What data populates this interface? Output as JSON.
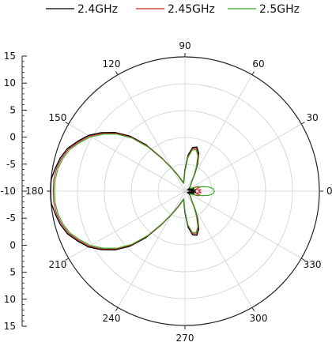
{
  "chart_data": {
    "type": "polar-line",
    "title": "",
    "legend": {
      "placement": "top",
      "entries": [
        {
          "name": "2.4GHz",
          "color": "#000000"
        },
        {
          "name": "2.45GHz",
          "color": "#cc2222"
        },
        {
          "name": "2.5GHz",
          "color": "#33aa22"
        }
      ]
    },
    "angle_ticks": [
      0,
      30,
      60,
      90,
      120,
      150,
      180,
      210,
      240,
      270,
      300,
      330
    ],
    "radial_axis": {
      "range": [
        -15,
        15
      ],
      "tick_labels": [
        "15",
        "10",
        "5",
        "0",
        "-5",
        "-10",
        "-5",
        "0",
        "5",
        "10",
        "15"
      ],
      "tick_values": [
        -15,
        -10,
        -5,
        0,
        5,
        10,
        15
      ],
      "grid_rings": 5
    },
    "grid": true,
    "series": [
      {
        "name": "2.4GHz",
        "points": [
          [
            0,
            0.05
          ],
          [
            5,
            0.08
          ],
          [
            10,
            0.03
          ],
          [
            15,
            0.07
          ],
          [
            20,
            0.05
          ],
          [
            25,
            0.02
          ],
          [
            30,
            0.03
          ],
          [
            40,
            0.05
          ],
          [
            50,
            0.07
          ],
          [
            55,
            0.09
          ],
          [
            60,
            0.14
          ],
          [
            65,
            0.22
          ],
          [
            70,
            0.3
          ],
          [
            75,
            0.34
          ],
          [
            80,
            0.33
          ],
          [
            85,
            0.27
          ],
          [
            90,
            0.16
          ],
          [
            95,
            0.09
          ],
          [
            100,
            0.06
          ],
          [
            110,
            0.1
          ],
          [
            115,
            0.14
          ],
          [
            120,
            0.2
          ],
          [
            125,
            0.3
          ],
          [
            130,
            0.45
          ],
          [
            135,
            0.58
          ],
          [
            140,
            0.68
          ],
          [
            145,
            0.76
          ],
          [
            150,
            0.83
          ],
          [
            155,
            0.88
          ],
          [
            160,
            0.93
          ],
          [
            165,
            0.96
          ],
          [
            170,
            0.98
          ],
          [
            175,
            1.0
          ],
          [
            180,
            1.0
          ],
          [
            185,
            1.0
          ],
          [
            190,
            0.98
          ],
          [
            195,
            0.96
          ],
          [
            200,
            0.93
          ],
          [
            205,
            0.88
          ],
          [
            210,
            0.83
          ],
          [
            215,
            0.76
          ],
          [
            220,
            0.68
          ],
          [
            225,
            0.58
          ],
          [
            230,
            0.45
          ],
          [
            235,
            0.3
          ],
          [
            240,
            0.2
          ],
          [
            245,
            0.14
          ],
          [
            250,
            0.1
          ],
          [
            260,
            0.06
          ],
          [
            265,
            0.09
          ],
          [
            270,
            0.16
          ],
          [
            275,
            0.27
          ],
          [
            280,
            0.33
          ],
          [
            285,
            0.34
          ],
          [
            290,
            0.3
          ],
          [
            295,
            0.22
          ],
          [
            300,
            0.14
          ],
          [
            305,
            0.09
          ],
          [
            310,
            0.07
          ],
          [
            320,
            0.05
          ],
          [
            330,
            0.03
          ],
          [
            335,
            0.02
          ],
          [
            340,
            0.05
          ],
          [
            345,
            0.07
          ],
          [
            350,
            0.03
          ],
          [
            355,
            0.08
          ],
          [
            360,
            0.05
          ]
        ]
      },
      {
        "name": "2.45GHz",
        "points": [
          [
            0,
            0.1
          ],
          [
            5,
            0.12
          ],
          [
            10,
            0.08
          ],
          [
            15,
            0.12
          ],
          [
            20,
            0.1
          ],
          [
            25,
            0.05
          ],
          [
            30,
            0.04
          ],
          [
            40,
            0.05
          ],
          [
            50,
            0.07
          ],
          [
            55,
            0.09
          ],
          [
            60,
            0.14
          ],
          [
            65,
            0.21
          ],
          [
            70,
            0.29
          ],
          [
            75,
            0.33
          ],
          [
            80,
            0.32
          ],
          [
            85,
            0.26
          ],
          [
            90,
            0.15
          ],
          [
            95,
            0.09
          ],
          [
            100,
            0.06
          ],
          [
            110,
            0.1
          ],
          [
            115,
            0.14
          ],
          [
            120,
            0.2
          ],
          [
            125,
            0.3
          ],
          [
            130,
            0.44
          ],
          [
            135,
            0.57
          ],
          [
            140,
            0.67
          ],
          [
            145,
            0.75
          ],
          [
            150,
            0.82
          ],
          [
            155,
            0.87
          ],
          [
            160,
            0.92
          ],
          [
            165,
            0.95
          ],
          [
            170,
            0.97
          ],
          [
            175,
            0.98
          ],
          [
            180,
            0.98
          ],
          [
            185,
            0.98
          ],
          [
            190,
            0.97
          ],
          [
            195,
            0.95
          ],
          [
            200,
            0.92
          ],
          [
            205,
            0.87
          ],
          [
            210,
            0.82
          ],
          [
            215,
            0.75
          ],
          [
            220,
            0.67
          ],
          [
            225,
            0.57
          ],
          [
            230,
            0.44
          ],
          [
            235,
            0.3
          ],
          [
            240,
            0.2
          ],
          [
            245,
            0.14
          ],
          [
            250,
            0.1
          ],
          [
            260,
            0.06
          ],
          [
            265,
            0.09
          ],
          [
            270,
            0.15
          ],
          [
            275,
            0.26
          ],
          [
            280,
            0.32
          ],
          [
            285,
            0.33
          ],
          [
            290,
            0.29
          ],
          [
            295,
            0.21
          ],
          [
            300,
            0.14
          ],
          [
            305,
            0.09
          ],
          [
            310,
            0.07
          ],
          [
            320,
            0.05
          ],
          [
            330,
            0.04
          ],
          [
            335,
            0.05
          ],
          [
            340,
            0.1
          ],
          [
            345,
            0.12
          ],
          [
            350,
            0.08
          ],
          [
            355,
            0.12
          ],
          [
            360,
            0.1
          ]
        ]
      },
      {
        "name": "2.5GHz",
        "points": [
          [
            0,
            0.22
          ],
          [
            5,
            0.21
          ],
          [
            10,
            0.18
          ],
          [
            15,
            0.13
          ],
          [
            20,
            0.08
          ],
          [
            25,
            0.05
          ],
          [
            30,
            0.04
          ],
          [
            40,
            0.05
          ],
          [
            50,
            0.07
          ],
          [
            55,
            0.09
          ],
          [
            60,
            0.13
          ],
          [
            65,
            0.2
          ],
          [
            70,
            0.28
          ],
          [
            75,
            0.32
          ],
          [
            80,
            0.31
          ],
          [
            85,
            0.25
          ],
          [
            90,
            0.15
          ],
          [
            95,
            0.09
          ],
          [
            100,
            0.06
          ],
          [
            110,
            0.09
          ],
          [
            115,
            0.13
          ],
          [
            120,
            0.19
          ],
          [
            125,
            0.29
          ],
          [
            130,
            0.43
          ],
          [
            135,
            0.56
          ],
          [
            140,
            0.66
          ],
          [
            145,
            0.74
          ],
          [
            150,
            0.81
          ],
          [
            155,
            0.86
          ],
          [
            160,
            0.91
          ],
          [
            165,
            0.94
          ],
          [
            170,
            0.96
          ],
          [
            175,
            0.97
          ],
          [
            180,
            0.97
          ],
          [
            185,
            0.97
          ],
          [
            190,
            0.96
          ],
          [
            195,
            0.94
          ],
          [
            200,
            0.91
          ],
          [
            205,
            0.86
          ],
          [
            210,
            0.81
          ],
          [
            215,
            0.74
          ],
          [
            220,
            0.66
          ],
          [
            225,
            0.56
          ],
          [
            230,
            0.43
          ],
          [
            235,
            0.29
          ],
          [
            240,
            0.19
          ],
          [
            245,
            0.13
          ],
          [
            250,
            0.09
          ],
          [
            260,
            0.06
          ],
          [
            265,
            0.09
          ],
          [
            270,
            0.15
          ],
          [
            275,
            0.25
          ],
          [
            280,
            0.31
          ],
          [
            285,
            0.32
          ],
          [
            290,
            0.28
          ],
          [
            295,
            0.2
          ],
          [
            300,
            0.13
          ],
          [
            305,
            0.09
          ],
          [
            310,
            0.07
          ],
          [
            320,
            0.05
          ],
          [
            330,
            0.04
          ],
          [
            335,
            0.05
          ],
          [
            340,
            0.08
          ],
          [
            345,
            0.13
          ],
          [
            350,
            0.18
          ],
          [
            355,
            0.21
          ],
          [
            360,
            0.22
          ]
        ]
      }
    ]
  }
}
